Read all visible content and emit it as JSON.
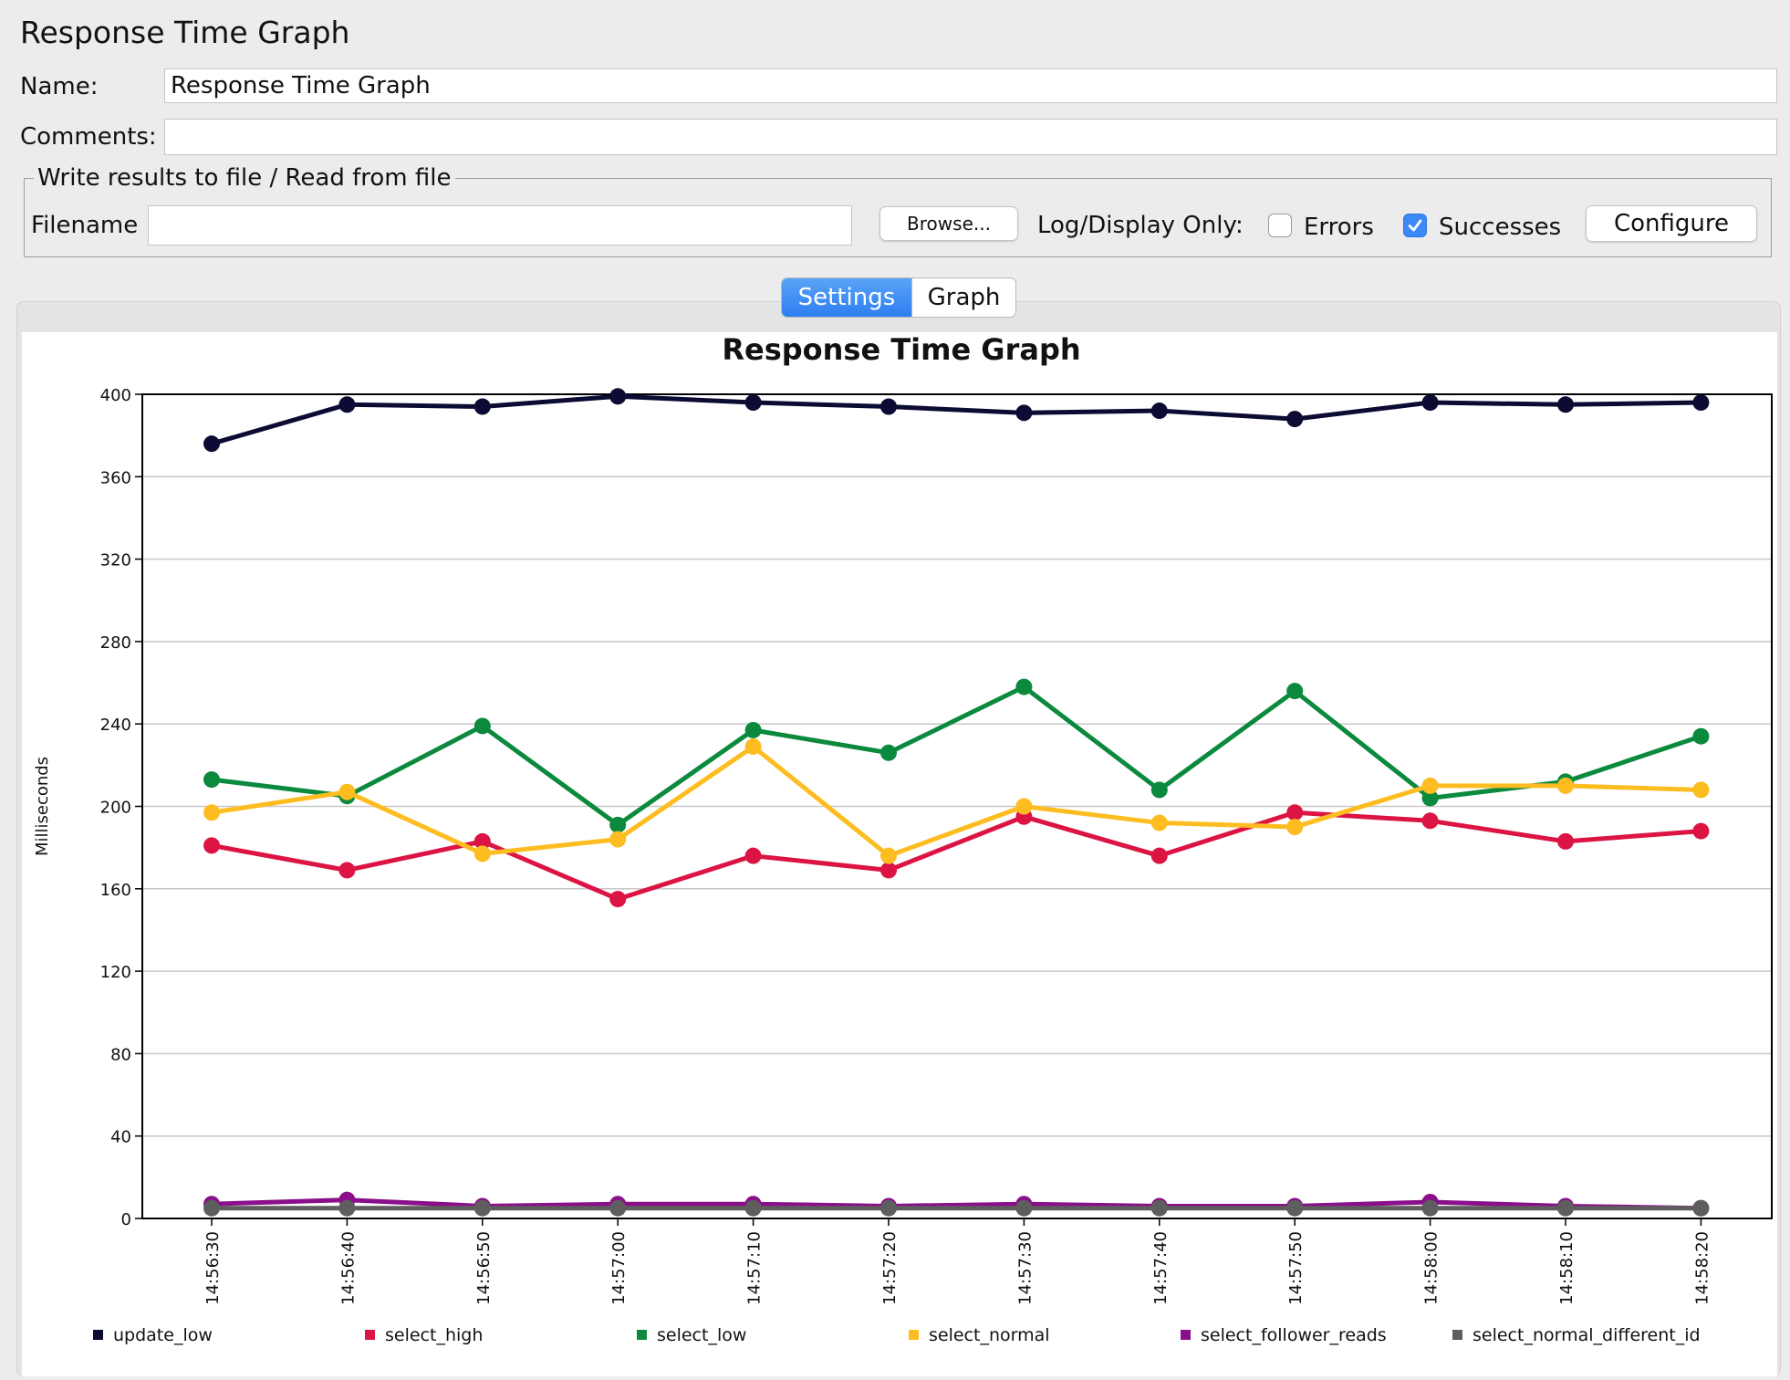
{
  "page": {
    "title": "Response Time Graph"
  },
  "form": {
    "name_label": "Name:",
    "name_value": "Response Time Graph",
    "comments_label": "Comments:",
    "comments_value": ""
  },
  "file": {
    "legend": "Write results to file / Read from file",
    "filename_label": "Filename",
    "filename_value": "",
    "browse_label": "Browse...",
    "log_display_label": "Log/Display Only:",
    "errors_label": "Errors",
    "errors_checked": false,
    "successes_label": "Successes",
    "successes_checked": true,
    "configure_label": "Configure"
  },
  "tabs": [
    {
      "label": "Settings",
      "active": true
    },
    {
      "label": "Graph",
      "active": false
    }
  ],
  "chart_data": {
    "type": "line",
    "title": "Response Time Graph",
    "ylabel": "Milliseconds",
    "xlabel": "",
    "ylim": [
      0,
      400
    ],
    "yticks": [
      0,
      40,
      80,
      120,
      160,
      200,
      240,
      280,
      320,
      360,
      400
    ],
    "grid": true,
    "legend_position": "bottom",
    "x": [
      "14:56:30",
      "14:56:40",
      "14:56:50",
      "14:57:00",
      "14:57:10",
      "14:57:20",
      "14:57:30",
      "14:57:40",
      "14:57:50",
      "14:58:00",
      "14:58:10",
      "14:58:20"
    ],
    "series": [
      {
        "name": "update_low",
        "color": "#0b0b33",
        "values": [
          376,
          395,
          394,
          399,
          396,
          394,
          391,
          392,
          388,
          396,
          395,
          396
        ]
      },
      {
        "name": "select_high",
        "color": "#dc1443",
        "values": [
          181,
          169,
          183,
          155,
          176,
          169,
          195,
          176,
          197,
          193,
          183,
          188
        ]
      },
      {
        "name": "select_low",
        "color": "#0b8a3e",
        "values": [
          213,
          205,
          239,
          191,
          237,
          226,
          258,
          208,
          256,
          204,
          212,
          234
        ]
      },
      {
        "name": "select_normal",
        "color": "#fdbd21",
        "values": [
          197,
          207,
          177,
          184,
          229,
          176,
          200,
          192,
          190,
          210,
          210,
          208
        ]
      },
      {
        "name": "select_follower_reads",
        "color": "#8a0f8a",
        "values": [
          7,
          9,
          6,
          7,
          7,
          6,
          7,
          6,
          6,
          8,
          6,
          5
        ]
      },
      {
        "name": "select_normal_different_id",
        "color": "#5e5e5e",
        "values": [
          5,
          5,
          5,
          5,
          5,
          5,
          5,
          5,
          5,
          5,
          5,
          5
        ]
      }
    ]
  }
}
